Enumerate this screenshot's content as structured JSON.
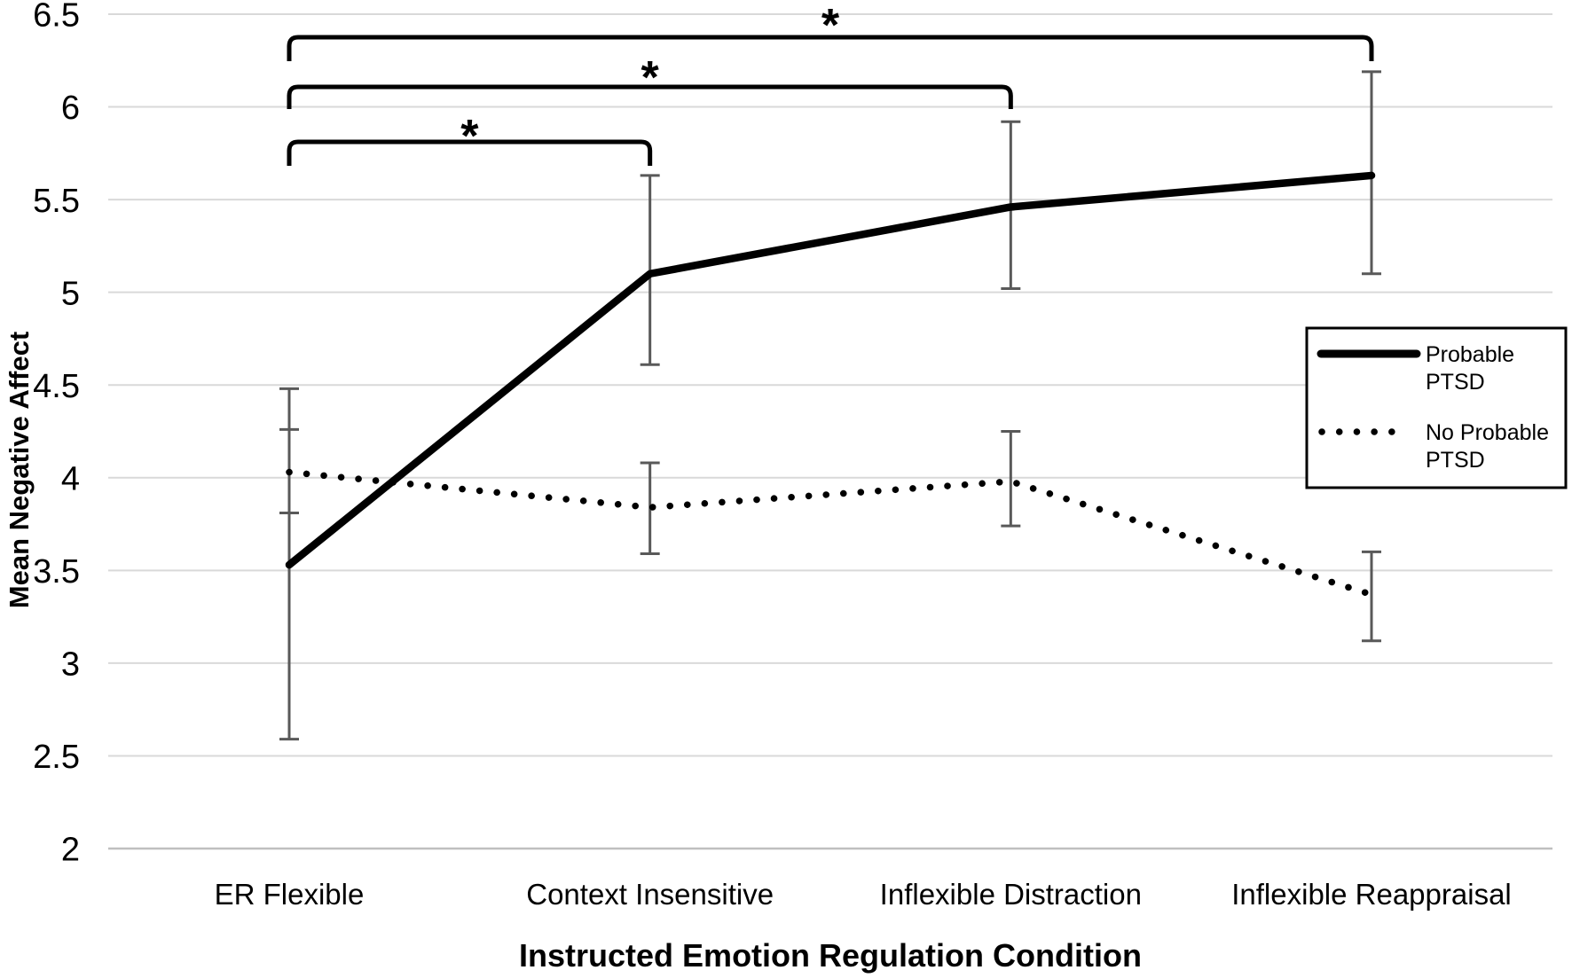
{
  "chart_data": {
    "type": "line",
    "title": "",
    "xlabel": "Instructed Emotion Regulation Condition",
    "ylabel": "Mean Negative Affect",
    "categories": [
      "ER Flexible",
      "Context Insensitive",
      "Inflexible Distraction",
      "Inflexible Reappraisal"
    ],
    "ylim": [
      2,
      6.5
    ],
    "ytick_step": 0.5,
    "ytick_labels": [
      "2",
      "2.5",
      "3",
      "3.5",
      "4",
      "4.5",
      "5",
      "5.5",
      "6",
      "6.5"
    ],
    "grid": true,
    "legend_position": "middle-right",
    "series": [
      {
        "name": "Probable PTSD",
        "legend_label_lines": [
          "Probable",
          "PTSD"
        ],
        "style": "solid",
        "values": [
          3.53,
          5.1,
          5.46,
          5.63
        ],
        "error_low": [
          2.59,
          4.61,
          5.02,
          5.1
        ],
        "error_high": [
          4.48,
          5.63,
          5.92,
          6.19
        ]
      },
      {
        "name": "No Probable PTSD",
        "legend_label_lines": [
          "No Probable",
          "PTSD"
        ],
        "style": "dotted",
        "values": [
          4.03,
          3.84,
          3.98,
          3.37
        ],
        "error_low": [
          3.81,
          3.59,
          3.74,
          3.12
        ],
        "error_high": [
          4.26,
          4.08,
          4.25,
          3.6
        ]
      }
    ],
    "significance_brackets": [
      {
        "from": 0,
        "to": 1,
        "label": "*"
      },
      {
        "from": 0,
        "to": 2,
        "label": "*"
      },
      {
        "from": 0,
        "to": 3,
        "label": "*"
      }
    ],
    "colors": {
      "series": "#000000",
      "error_bar": "#595959",
      "gridline": "#d9d9d9",
      "axis_line": "#bfbfbf",
      "background": "#ffffff"
    }
  }
}
